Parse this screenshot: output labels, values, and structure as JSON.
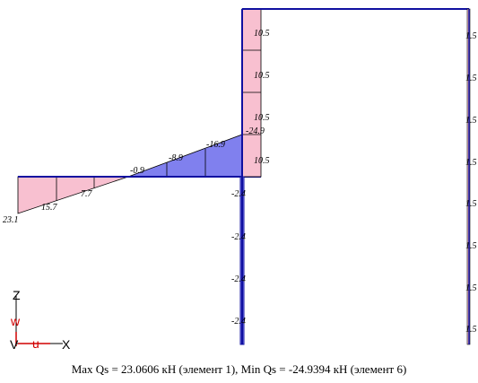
{
  "colors": {
    "positive_fill": "#f8c0d0",
    "negative_fill": "#8080ee",
    "frame_line": "#1010a0",
    "outline": "#000000",
    "axis_z": "#000000",
    "axis_w": "#d00000",
    "axis_u": "#d00000",
    "axis_x": "#000000"
  },
  "diagram": {
    "quantity": "Qs",
    "left_beam_labels": [
      "23.1",
      "15.7",
      "7.7",
      "-0.9",
      "-8.9",
      "-16.9",
      "-24.9"
    ],
    "column_upper_labels": [
      "10.5",
      "10.5",
      "10.5",
      "10.5"
    ],
    "column_lower_labels": [
      "-2.4",
      "-2.4",
      "-2.4",
      "-2.4"
    ],
    "right_column_labels": [
      "1.5",
      "1.5",
      "1.5",
      "1.5",
      "1.5",
      "1.5",
      "1.5",
      "1.5"
    ]
  },
  "axes_icon": {
    "z": "Z",
    "w": "w",
    "u": "u",
    "x": "X"
  },
  "caption": "Max Qs = 23.0606 кН (элемент 1), Min Qs = -24.9394 кН (элемент 6)"
}
